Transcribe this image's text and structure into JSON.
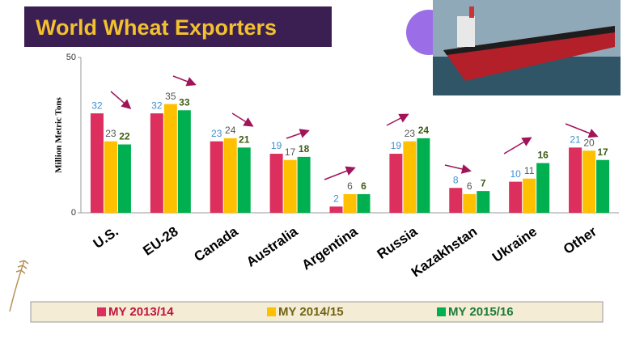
{
  "chart_data": {
    "type": "bar",
    "title": "World Wheat Exporters",
    "y_label": "Million Metric Tons",
    "categories": [
      "U.S.",
      "EU-28",
      "Canada",
      "Australia",
      "Argentina",
      "Russia",
      "Kazakhstan",
      "Ukraine",
      "Other"
    ],
    "series": [
      {
        "name": "MY 2013/14",
        "color": "#dc2f5e",
        "label_color": "#3f8fd0",
        "values": [
          32,
          32,
          23,
          19,
          2,
          19,
          8,
          10,
          21
        ]
      },
      {
        "name": "MY 2014/15",
        "color": "#ffc000",
        "label_color": "#555555",
        "values": [
          23,
          35,
          24,
          17,
          6,
          23,
          6,
          11,
          20
        ]
      },
      {
        "name": "MY 2015/16",
        "color": "#00b050",
        "label_color": "#3d5a12",
        "values": [
          22,
          33,
          21,
          18,
          6,
          24,
          7,
          16,
          17
        ]
      }
    ],
    "ylim": [
      0,
      50
    ],
    "yticks": [
      0,
      50
    ],
    "grid": false,
    "legend": "bottom"
  }
}
